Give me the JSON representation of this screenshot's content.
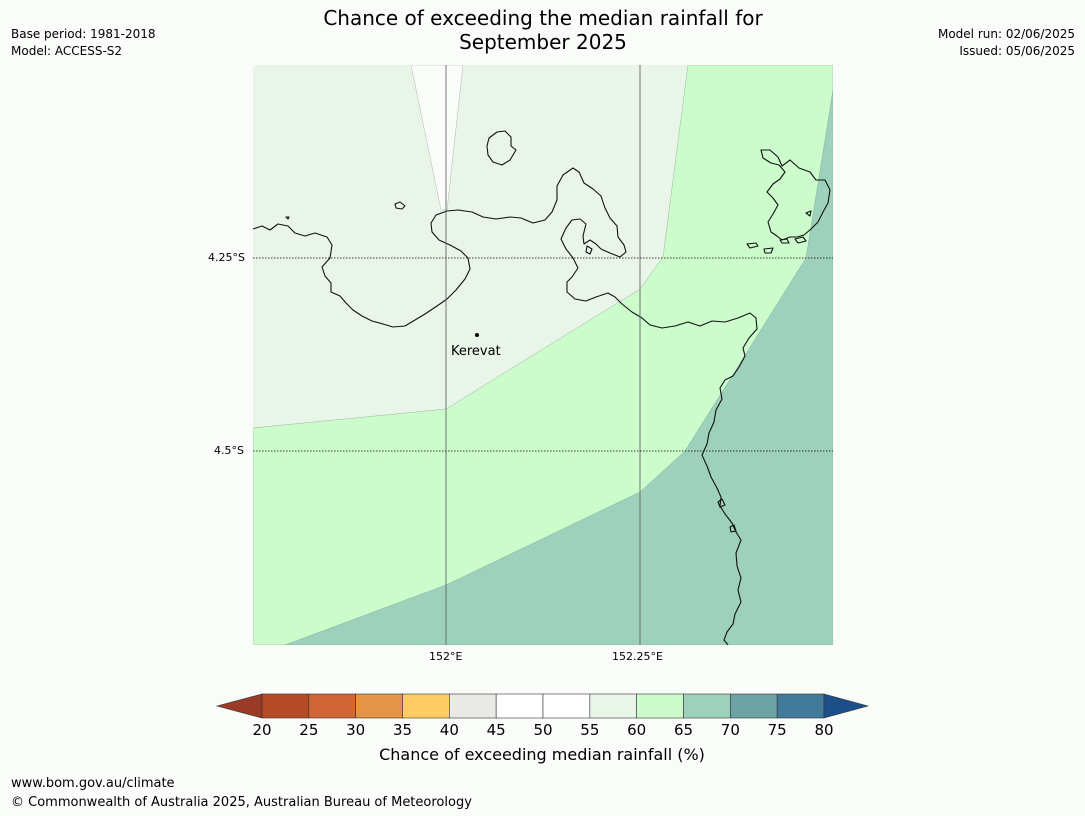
{
  "header": {
    "base_period": "Base period: 1981-2018",
    "model": "Model: ACCESS-S2",
    "model_run": "Model run: 02/06/2025",
    "issued": "Issued: 05/06/2025",
    "title_line1": "Chance of exceeding the median rainfall for",
    "title_line2": "September 2025"
  },
  "map": {
    "lat_labels": [
      "4.25°S",
      "4.5°S"
    ],
    "lon_labels": [
      "152°E",
      "152.25°E"
    ],
    "place": "Kerevat",
    "colors": {
      "band_55_60": "#eaf5ea",
      "band_60_65": "#ccfccc",
      "band_65_70": "#9dd1bb",
      "coast": "#000000",
      "gridline": "#000000"
    }
  },
  "colorbar": {
    "ticks": [
      "20",
      "25",
      "30",
      "35",
      "40",
      "45",
      "50",
      "55",
      "60",
      "65",
      "70",
      "75",
      "80"
    ],
    "colors": {
      "below_20": "#9b3b27",
      "20_25": "#b54a27",
      "25_30": "#d06536",
      "30_35": "#e39547",
      "35_40": "#fdcc65",
      "40_45": "#e9e9e5",
      "45_50": "#ffffff",
      "50_55": "#ffffff",
      "55_60": "#eaf5ea",
      "60_65": "#ccfccc",
      "65_70": "#9dd1bb",
      "70_75": "#6ea3a6",
      "75_80": "#427a9c",
      "above_80": "#1c4f8a"
    },
    "label": "Chance of exceeding median rainfall (%)"
  },
  "footer": {
    "url": "www.bom.gov.au/climate",
    "copyright": "© Commonwealth of Australia 2025, Australian Bureau of Meteorology"
  }
}
